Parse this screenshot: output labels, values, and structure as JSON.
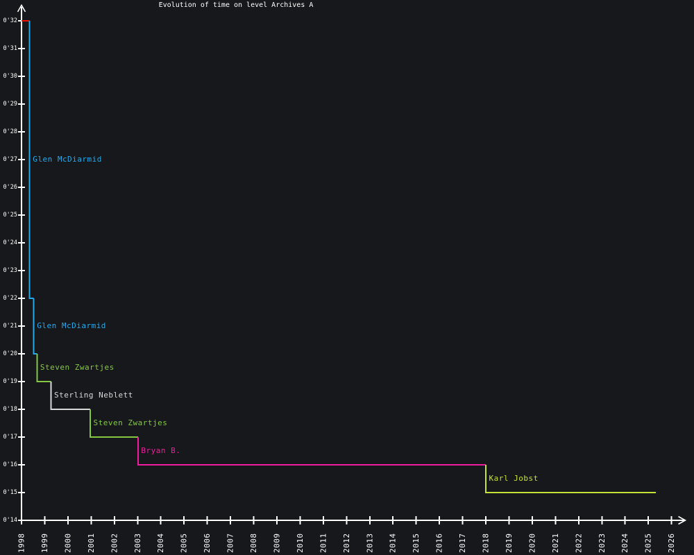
{
  "chart_data": {
    "type": "line",
    "subtype": "step-record-progression",
    "title": "Evolution of time on level Archives A",
    "grid": false,
    "legend": "none",
    "background_color": "#17181b",
    "axis_color": "#ffffff",
    "x_axis": {
      "label": "",
      "ticks": [
        1998,
        1999,
        2000,
        2001,
        2002,
        2003,
        2004,
        2005,
        2006,
        2007,
        2008,
        2009,
        2010,
        2011,
        2012,
        2013,
        2014,
        2015,
        2016,
        2017,
        2018,
        2019,
        2020,
        2021,
        2022,
        2023,
        2024,
        2025,
        2026
      ],
      "range": [
        1998,
        2026.6
      ],
      "tick_label_rotation_deg": -90
    },
    "y_axis": {
      "label": "",
      "tick_seconds": [
        32,
        31,
        30,
        29,
        28,
        27,
        26,
        25,
        24,
        23,
        22,
        21,
        20,
        19,
        18,
        17,
        16,
        15,
        14
      ],
      "tick_labels": [
        "0'32",
        "0'31",
        "0'30",
        "0'29",
        "0'28",
        "0'27",
        "0'26",
        "0'25",
        "0'24",
        "0'23",
        "0'22",
        "0'21",
        "0'20",
        "0'19",
        "0'18",
        "0'17",
        "0'16",
        "0'15",
        "0'14"
      ],
      "range_seconds": [
        14,
        32
      ]
    },
    "records": [
      {
        "player": "",
        "label_visible": false,
        "time_label": "0'32",
        "time_seconds": 32,
        "year_start": 1998.0,
        "year_end": 1998.35,
        "color": "#ee1400"
      },
      {
        "player": "Glen McDiarmid",
        "label_visible": true,
        "time_label": "0'22",
        "time_seconds": 22,
        "year_start": 1998.35,
        "year_end": 1998.53,
        "color": "#25aaec"
      },
      {
        "player": "Glen McDiarmid",
        "label_visible": true,
        "time_label": "0'20",
        "time_seconds": 20,
        "year_start": 1998.53,
        "year_end": 1998.67,
        "color": "#25aaec"
      },
      {
        "player": "Steven Zwartjes",
        "label_visible": true,
        "time_label": "0'19",
        "time_seconds": 19,
        "year_start": 1998.67,
        "year_end": 1999.27,
        "color": "#85c940"
      },
      {
        "player": "Sterling Neblett",
        "label_visible": true,
        "time_label": "0'18",
        "time_seconds": 18,
        "year_start": 1999.27,
        "year_end": 2000.96,
        "color": "#d9d9d9"
      },
      {
        "player": "Steven Zwartjes",
        "label_visible": true,
        "time_label": "0'17",
        "time_seconds": 17,
        "year_start": 2000.96,
        "year_end": 2003.02,
        "color": "#85c940"
      },
      {
        "player": "Bryan B.",
        "label_visible": true,
        "time_label": "0'16",
        "time_seconds": 16,
        "year_start": 2003.02,
        "year_end": 2018.0,
        "color": "#f01e9e"
      },
      {
        "player": "Karl Jobst",
        "label_visible": true,
        "time_label": "0'15",
        "time_seconds": 15,
        "year_start": 2018.0,
        "year_end": 2025.32,
        "color": "#c6e236"
      }
    ]
  }
}
